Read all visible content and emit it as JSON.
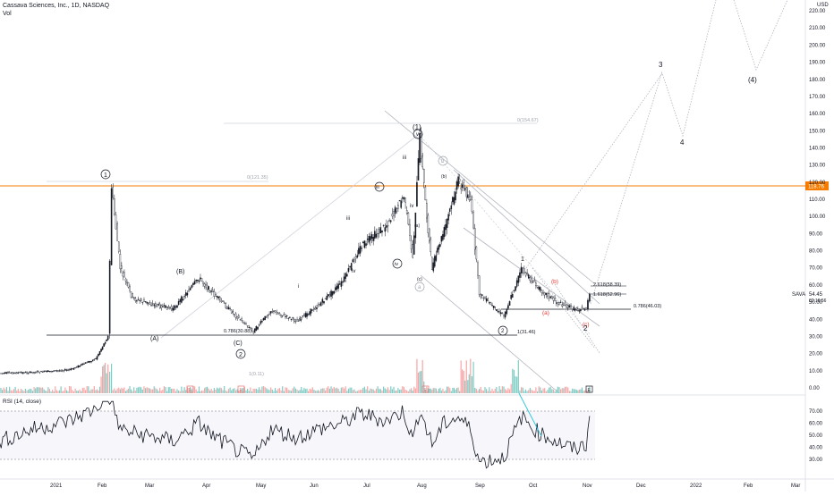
{
  "header": {
    "symbol_line": "Cassava Sciences, Inc., 1D, NASDAQ",
    "volume_label": "Vol"
  },
  "currency": "USD",
  "rsi_label": "RSI (14, close)",
  "price_axis": {
    "ticks": [
      "0.00",
      "10.00",
      "20.00",
      "30.00",
      "40.00",
      "50.00",
      "60.00",
      "70.00",
      "80.00",
      "90.00",
      "100.00",
      "110.00",
      "120.00",
      "130.00",
      "140.00",
      "150.00",
      "160.00",
      "170.00",
      "180.00",
      "190.00",
      "200.00",
      "210.00",
      "220.00"
    ],
    "tick_values": [
      0,
      10,
      20,
      30,
      40,
      50,
      60,
      70,
      80,
      90,
      100,
      110,
      120,
      130,
      140,
      150,
      160,
      170,
      180,
      190,
      200,
      210,
      220
    ],
    "horizontal_line_label": "118.76",
    "last_price": "54.45",
    "last_price_time": "02:18:56",
    "symbol_tag": "SAVA"
  },
  "rsi_axis": {
    "ticks": [
      "70.00",
      "60.00",
      "50.00",
      "40.00",
      "30.00"
    ],
    "tick_values": [
      70,
      60,
      50,
      40,
      30
    ]
  },
  "time_axis": {
    "labels": [
      "2021",
      "Feb",
      "Mar",
      "Apr",
      "May",
      "Jun",
      "Jul",
      "Aug",
      "Sep",
      "Oct",
      "Nov",
      "Dec",
      "2022",
      "Feb",
      "Mar"
    ]
  },
  "wave_labels": {
    "circle_1": "1",
    "circle_2": "2",
    "paren_1": "(1)",
    "paren_4": "(4)",
    "A": "(A)",
    "B": "(B)",
    "C": "(C)",
    "i": "i",
    "ii": "ii",
    "iii": "iii",
    "iv": "iv",
    "iii_minor": "iii",
    "iv_minor": "iv",
    "circle_iii": "iii",
    "circle_iv": "iv",
    "circle_v": "v",
    "a_circle": "a",
    "b_circle": "b",
    "c_small": "(c)",
    "b_small": "(b)",
    "a_small": "(a)",
    "c_red": "(c)",
    "b_red": "(b)",
    "a_red": "(a)",
    "one": "1",
    "two": "2",
    "three": "3",
    "four": "4",
    "circle_2_small": "2"
  },
  "fib_labels": {
    "fib_0_786": "0.786(30.88)",
    "fib_1_lower": "1(31.46)",
    "fib_0786_b": "0.786(46.03)",
    "fib_1618": "1.618(52.96)",
    "fib_2618": "2.618(58.39)",
    "fib_0_top": "0(154.67)",
    "fib_0_left": "0(121.35)",
    "fib_vol": "1(0.11)"
  },
  "event_markers": [
    "E",
    "E",
    "E",
    "E"
  ],
  "chart_data": {
    "type": "line",
    "title": "Cassava Sciences, Inc., 1D, NASDAQ",
    "ylabel": "USD",
    "ylim": [
      0,
      225
    ],
    "series": [
      {
        "name": "SAVA",
        "x": [
          "2020-12-01",
          "2020-12-20",
          "2021-01-10",
          "2021-01-25",
          "2021-02-01",
          "2021-02-03",
          "2021-02-08",
          "2021-02-15",
          "2021-03-01",
          "2021-03-10",
          "2021-03-25",
          "2021-04-01",
          "2021-04-15",
          "2021-04-25",
          "2021-05-05",
          "2021-05-20",
          "2021-06-01",
          "2021-06-15",
          "2021-06-25",
          "2021-07-10",
          "2021-07-20",
          "2021-07-25",
          "2021-07-29",
          "2021-08-02",
          "2021-08-05",
          "2021-08-12",
          "2021-08-20",
          "2021-08-27",
          "2021-09-01",
          "2021-09-10",
          "2021-09-15",
          "2021-09-25",
          "2021-10-05",
          "2021-10-15",
          "2021-10-25",
          "2021-11-01",
          "2021-11-03"
        ],
        "values": [
          8.5,
          9.0,
          10.5,
          17.0,
          30.0,
          117.0,
          70.0,
          52.0,
          48.0,
          46.0,
          64.0,
          56.0,
          42.0,
          33.0,
          45.0,
          39.0,
          48.0,
          62.0,
          82.0,
          95.0,
          112.0,
          76.0,
          146.0,
          100.0,
          70.0,
          92.0,
          121.0,
          110.0,
          55.0,
          46.0,
          42.0,
          69.0,
          58.0,
          50.0,
          46.0,
          46.0,
          54.45
        ]
      }
    ],
    "rsi": {
      "name": "RSI (14, close)",
      "ylim": [
        20,
        75
      ],
      "values": [
        45,
        55,
        62,
        72,
        85,
        78,
        55,
        52,
        48,
        45,
        60,
        50,
        38,
        30,
        55,
        48,
        55,
        60,
        68,
        62,
        70,
        45,
        72,
        55,
        42,
        60,
        65,
        55,
        28,
        30,
        32,
        65,
        52,
        45,
        38,
        42,
        66
      ]
    },
    "grid": true,
    "legend": "none"
  },
  "colors": {
    "orange_line": "#f57c00",
    "up_candle": "#131722",
    "volume_up": "#80cbc4",
    "volume_down": "#f8a5a5",
    "red_label": "#e53935"
  }
}
